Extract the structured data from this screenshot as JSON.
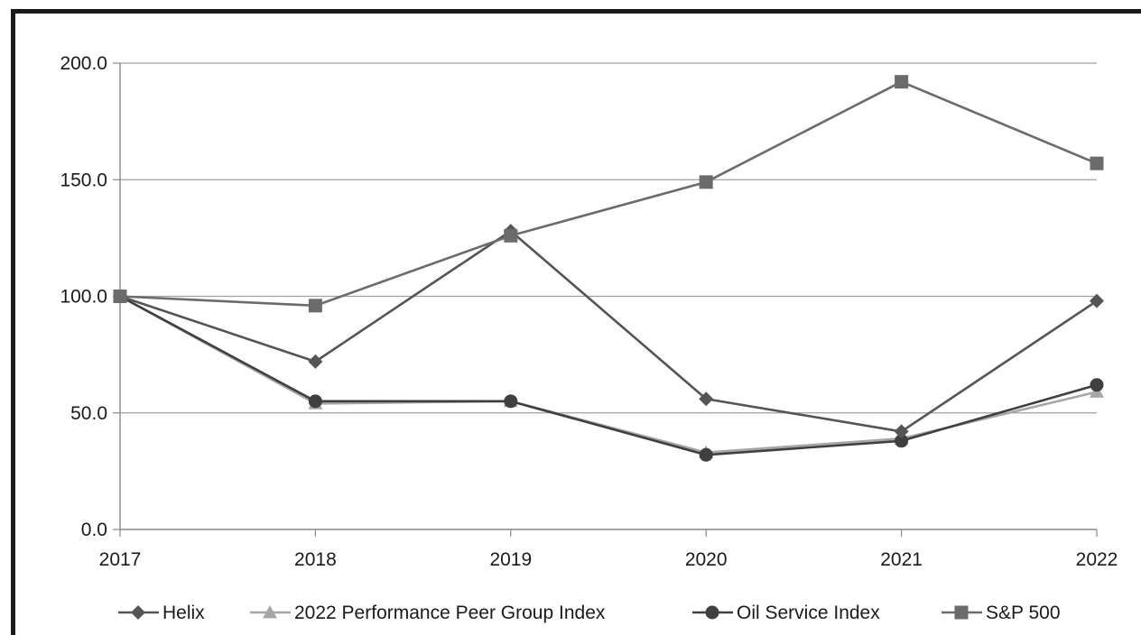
{
  "chart_data": {
    "type": "line",
    "x": [
      "2017",
      "2018",
      "2019",
      "2020",
      "2021",
      "2022"
    ],
    "ylim": [
      0,
      200
    ],
    "yticks": [
      "0.0",
      "50.0",
      "100.0",
      "150.0",
      "200.0"
    ],
    "grid": true,
    "legend_position": "bottom",
    "series": [
      {
        "name": "Helix",
        "marker": "diamond",
        "color": "#555555",
        "values": [
          100,
          72,
          128,
          56,
          42,
          98
        ]
      },
      {
        "name": "2022 Performance Peer Group Index",
        "marker": "triangle",
        "color": "#a6a6a6",
        "values": [
          100,
          54,
          55,
          33,
          39,
          59
        ]
      },
      {
        "name": "Oil Service Index",
        "marker": "circle",
        "color": "#3f3f3f",
        "values": [
          100,
          55,
          55,
          32,
          38,
          62
        ]
      },
      {
        "name": "S&P 500",
        "marker": "square",
        "color": "#6b6b6b",
        "values": [
          100,
          96,
          126,
          149,
          192,
          157
        ]
      }
    ]
  }
}
